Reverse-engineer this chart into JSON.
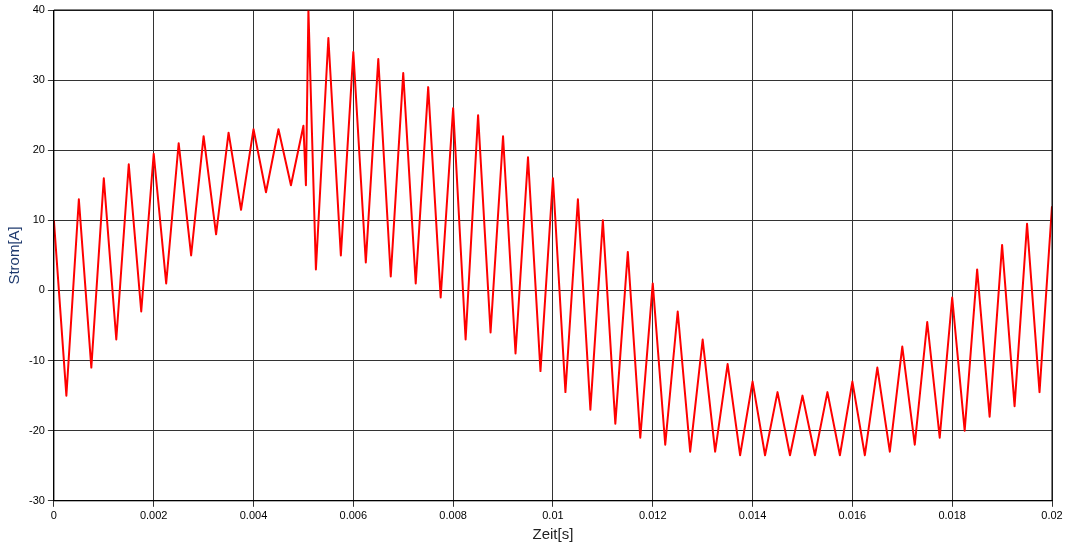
{
  "chart_data": {
    "type": "line",
    "xlabel": "Zeit[s]",
    "ylabel": "Strom[A]",
    "x": [
      0,
      0.00025,
      0.0005,
      0.00075,
      0.001,
      0.00125,
      0.0015,
      0.00175,
      0.002,
      0.00225,
      0.0025,
      0.00275,
      0.003,
      0.00325,
      0.0035,
      0.00375,
      0.004,
      0.00425,
      0.0045,
      0.00475,
      0.005,
      0.00505,
      0.0051,
      0.00525,
      0.0055,
      0.00575,
      0.006,
      0.00625,
      0.0065,
      0.00675,
      0.007,
      0.00725,
      0.0075,
      0.00775,
      0.008,
      0.00825,
      0.0085,
      0.00875,
      0.009,
      0.00925,
      0.0095,
      0.00975,
      0.01,
      0.01025,
      0.0105,
      0.01075,
      0.011,
      0.01125,
      0.0115,
      0.01175,
      0.012,
      0.01225,
      0.0125,
      0.01275,
      0.013,
      0.01325,
      0.0135,
      0.01375,
      0.014,
      0.01425,
      0.0145,
      0.01475,
      0.015,
      0.01525,
      0.0155,
      0.01575,
      0.016,
      0.01625,
      0.0165,
      0.01675,
      0.017,
      0.01725,
      0.0175,
      0.01775,
      0.018,
      0.01825,
      0.0185,
      0.01875,
      0.019,
      0.01925,
      0.0195,
      0.01975,
      0.02
    ],
    "series": [
      {
        "color": "#ff0000",
        "values": [
          10,
          -15,
          13,
          -11,
          16,
          -7,
          18,
          -3,
          19.5,
          1,
          21,
          5,
          22,
          8,
          22.5,
          11.5,
          23,
          14,
          23,
          15,
          23.5,
          15,
          40,
          3,
          36,
          5,
          34,
          4,
          33,
          2,
          31,
          1,
          29,
          -1,
          26,
          -7,
          25,
          -6,
          22,
          -9,
          19,
          -11.5,
          16,
          -14.5,
          13,
          -17,
          10,
          -19,
          5.5,
          -21,
          1,
          -22,
          -3,
          -23,
          -7,
          -23,
          -10.5,
          -23.5,
          -13,
          -23.5,
          -14.5,
          -23.5,
          -15,
          -23.5,
          -14.5,
          -23.5,
          -13,
          -23.5,
          -11,
          -23,
          -8,
          -22,
          -4.5,
          -21,
          -1,
          -20,
          3,
          -18,
          6.5,
          -16.5,
          9.5,
          -14.5,
          12
        ]
      }
    ],
    "xlim": [
      0,
      0.02
    ],
    "xticks": [
      0,
      0.002,
      0.004,
      0.006,
      0.008,
      0.01,
      0.012,
      0.014,
      0.016,
      0.018,
      0.02
    ],
    "ylim": [
      -30,
      40
    ],
    "yticks": [
      -30,
      -20,
      -10,
      0,
      10,
      20,
      30,
      40
    ],
    "grid": true,
    "legend": false,
    "marker": "none",
    "line_style": "solid"
  }
}
